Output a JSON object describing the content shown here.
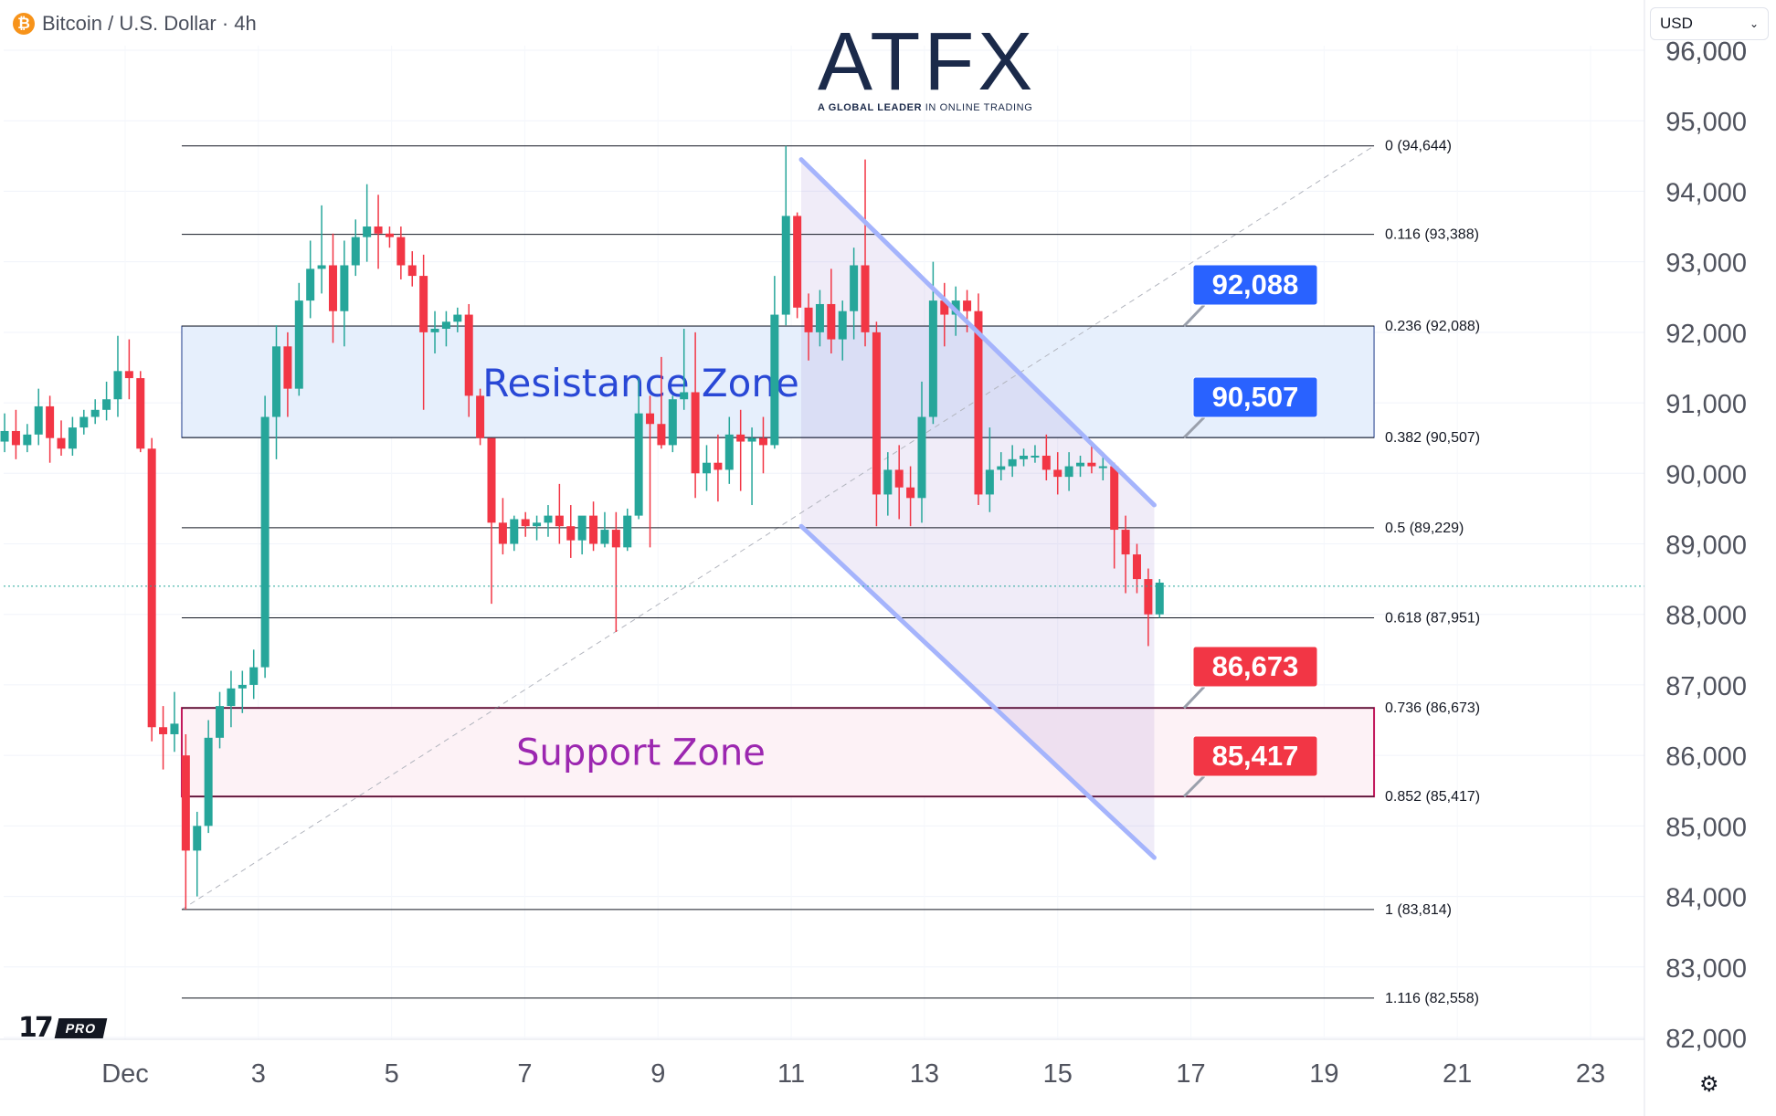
{
  "header": {
    "coin_symbol": "₿",
    "title": "Bitcoin / U.S. Dollar · 4h"
  },
  "currency_select": {
    "value": "USD"
  },
  "logo": {
    "brand": "ATFX",
    "tagline_bold": "A GLOBAL LEADER",
    "tagline_rest": " IN ONLINE TRADING"
  },
  "watermark": {
    "pro_label": "PRO"
  },
  "chart_data": {
    "type": "candlestick",
    "ylim": [
      81700,
      96300
    ],
    "xlim": [
      -1.2,
      23.8
    ],
    "y_ticks": [
      96000,
      95000,
      94000,
      93000,
      92000,
      91000,
      90000,
      89000,
      88000,
      87000,
      86000,
      85000,
      84000,
      83000,
      82000
    ],
    "y_tick_labels": [
      "96,000",
      "95,000",
      "94,000",
      "93,000",
      "92,000",
      "91,000",
      "90,000",
      "89,000",
      "88,000",
      "87,000",
      "86,000",
      "85,000",
      "84,000",
      "83,000",
      "82,000"
    ],
    "x_ticks": [
      1,
      3,
      5,
      7,
      9,
      11,
      13,
      15,
      17,
      19,
      21,
      23
    ],
    "x_tick_labels": [
      "Dec",
      "3",
      "5",
      "7",
      "9",
      "11",
      "13",
      "15",
      "17",
      "19",
      "21",
      "23"
    ],
    "colors": {
      "up": "#26a69a",
      "down": "#f23645",
      "fib_line": "#131722",
      "resistance_fill": "#e6effc",
      "resistance_border": "#1e3a8a",
      "support_fill": "#fdf2f6",
      "support_border": "#c2185b",
      "channel": "#a5b4fc",
      "blue_label": "#2962ff",
      "red_label": "#f23645"
    },
    "fib_levels": [
      {
        "label": "0 (94,644)",
        "value": 94644
      },
      {
        "label": "0.116 (93,388)",
        "value": 93388
      },
      {
        "label": "0.236 (92,088)",
        "value": 92088
      },
      {
        "label": "0.382 (90,507)",
        "value": 90507
      },
      {
        "label": "0.5 (89,229)",
        "value": 89229
      },
      {
        "label": "0.618 (87,951)",
        "value": 87951
      },
      {
        "label": "0.736 (86,673)",
        "value": 86673
      },
      {
        "label": "0.852 (85,417)",
        "value": 85417
      },
      {
        "label": "1 (83,814)",
        "value": 83814
      },
      {
        "label": "1.116 (82,558)",
        "value": 82558
      }
    ],
    "fib_start_x": 1.85,
    "fib_end_x": 19.75,
    "zones": [
      {
        "name": "Resistance Zone",
        "low": 90507,
        "high": 92088,
        "x_start": 1.85,
        "x_end": 19.75
      },
      {
        "name": "Support Zone",
        "low": 85417,
        "high": 86673,
        "x_start": 1.85,
        "x_end": 19.75
      }
    ],
    "price_labels": [
      {
        "text": "92,088",
        "value": 92088,
        "color": "blue"
      },
      {
        "text": "90,507",
        "value": 90507,
        "color": "blue"
      },
      {
        "text": "86,673",
        "value": 86673,
        "color": "red"
      },
      {
        "text": "85,417",
        "value": 85417,
        "color": "red"
      }
    ],
    "channel": {
      "upper": [
        [
          11.15,
          94450
        ],
        [
          16.45,
          89550
        ]
      ],
      "lower": [
        [
          11.15,
          89250
        ],
        [
          16.45,
          84550
        ]
      ]
    },
    "fib_trend_line": [
      [
        1.85,
        83814
      ],
      [
        19.75,
        94644
      ]
    ],
    "current_price": 88400,
    "candles": [
      {
        "x": -1.15,
        "o": 91100,
        "h": 91250,
        "c": 90800,
        "l": 90500
      },
      {
        "x": -0.98,
        "o": 90800,
        "h": 91100,
        "c": 90450,
        "l": 90250
      },
      {
        "x": -0.81,
        "o": 90450,
        "h": 90850,
        "c": 90600,
        "l": 90300
      },
      {
        "x": -0.64,
        "o": 90600,
        "h": 90900,
        "c": 90400,
        "l": 90200
      },
      {
        "x": -0.47,
        "o": 90400,
        "h": 90700,
        "c": 90550,
        "l": 90300
      },
      {
        "x": -0.3,
        "o": 90550,
        "h": 91200,
        "c": 90950,
        "l": 90400
      },
      {
        "x": -0.13,
        "o": 90950,
        "h": 91100,
        "c": 90500,
        "l": 90150
      },
      {
        "x": 0.04,
        "o": 90500,
        "h": 90750,
        "c": 90350,
        "l": 90250
      },
      {
        "x": 0.21,
        "o": 90350,
        "h": 90800,
        "c": 90650,
        "l": 90250
      },
      {
        "x": 0.38,
        "o": 90650,
        "h": 90900,
        "c": 90800,
        "l": 90550
      },
      {
        "x": 0.55,
        "o": 90800,
        "h": 91050,
        "c": 90900,
        "l": 90700
      },
      {
        "x": 0.72,
        "o": 90900,
        "h": 91300,
        "c": 91050,
        "l": 90750
      },
      {
        "x": 0.89,
        "o": 91050,
        "h": 91950,
        "c": 91450,
        "l": 90800
      },
      {
        "x": 1.06,
        "o": 91450,
        "h": 91900,
        "c": 91350,
        "l": 91050
      },
      {
        "x": 1.23,
        "o": 91350,
        "h": 91450,
        "c": 90350,
        "l": 90300
      },
      {
        "x": 1.4,
        "o": 90350,
        "h": 90500,
        "c": 86400,
        "l": 86200
      },
      {
        "x": 1.57,
        "o": 86400,
        "h": 86700,
        "c": 86300,
        "l": 85800
      },
      {
        "x": 1.74,
        "o": 86300,
        "h": 86900,
        "c": 86450,
        "l": 86050
      },
      {
        "x": 1.91,
        "o": 86000,
        "h": 86300,
        "c": 84650,
        "l": 83814
      },
      {
        "x": 2.08,
        "o": 84650,
        "h": 85200,
        "c": 85000,
        "l": 84000
      },
      {
        "x": 2.25,
        "o": 85000,
        "h": 86500,
        "c": 86250,
        "l": 84900
      },
      {
        "x": 2.42,
        "o": 86250,
        "h": 86900,
        "c": 86700,
        "l": 86100
      },
      {
        "x": 2.59,
        "o": 86700,
        "h": 87200,
        "c": 86950,
        "l": 86400
      },
      {
        "x": 2.76,
        "o": 86950,
        "h": 87200,
        "c": 87000,
        "l": 86600
      },
      {
        "x": 2.93,
        "o": 87000,
        "h": 87500,
        "c": 87250,
        "l": 86800
      },
      {
        "x": 3.1,
        "o": 87250,
        "h": 91100,
        "c": 90800,
        "l": 87100
      },
      {
        "x": 3.27,
        "o": 90800,
        "h": 92100,
        "c": 91800,
        "l": 90200
      },
      {
        "x": 3.44,
        "o": 91800,
        "h": 92000,
        "c": 91200,
        "l": 90800
      },
      {
        "x": 3.61,
        "o": 91200,
        "h": 92700,
        "c": 92450,
        "l": 91100
      },
      {
        "x": 3.78,
        "o": 92450,
        "h": 93300,
        "c": 92900,
        "l": 92200
      },
      {
        "x": 3.95,
        "o": 92900,
        "h": 93800,
        "c": 92950,
        "l": 92550
      },
      {
        "x": 4.12,
        "o": 92950,
        "h": 93400,
        "c": 92300,
        "l": 91850
      },
      {
        "x": 4.29,
        "o": 92300,
        "h": 93300,
        "c": 92950,
        "l": 91800
      },
      {
        "x": 4.46,
        "o": 92950,
        "h": 93600,
        "c": 93350,
        "l": 92800
      },
      {
        "x": 4.63,
        "o": 93350,
        "h": 94100,
        "c": 93500,
        "l": 93000
      },
      {
        "x": 4.8,
        "o": 93500,
        "h": 93950,
        "c": 93400,
        "l": 92900
      },
      {
        "x": 4.97,
        "o": 93400,
        "h": 93500,
        "c": 93350,
        "l": 93200
      },
      {
        "x": 5.14,
        "o": 93350,
        "h": 93500,
        "c": 92950,
        "l": 92750
      },
      {
        "x": 5.31,
        "o": 92950,
        "h": 93150,
        "c": 92800,
        "l": 92650
      },
      {
        "x": 5.48,
        "o": 92800,
        "h": 93100,
        "c": 92000,
        "l": 90900
      },
      {
        "x": 5.65,
        "o": 92000,
        "h": 92300,
        "c": 92050,
        "l": 91700
      },
      {
        "x": 5.82,
        "o": 92050,
        "h": 92300,
        "c": 92150,
        "l": 91800
      },
      {
        "x": 5.99,
        "o": 92150,
        "h": 92350,
        "c": 92250,
        "l": 92000
      },
      {
        "x": 6.16,
        "o": 92250,
        "h": 92400,
        "c": 91100,
        "l": 90800
      },
      {
        "x": 6.33,
        "o": 91100,
        "h": 91200,
        "c": 90500,
        "l": 90400
      },
      {
        "x": 6.5,
        "o": 90500,
        "h": 90500,
        "c": 89300,
        "l": 88150
      },
      {
        "x": 6.67,
        "o": 89300,
        "h": 89650,
        "c": 89000,
        "l": 88850
      },
      {
        "x": 6.84,
        "o": 89000,
        "h": 89400,
        "c": 89350,
        "l": 88900
      },
      {
        "x": 7.01,
        "o": 89350,
        "h": 89450,
        "c": 89250,
        "l": 89100
      },
      {
        "x": 7.18,
        "o": 89250,
        "h": 89400,
        "c": 89300,
        "l": 89050
      },
      {
        "x": 7.35,
        "o": 89300,
        "h": 89550,
        "c": 89400,
        "l": 89100
      },
      {
        "x": 7.52,
        "o": 89400,
        "h": 89850,
        "c": 89250,
        "l": 89000
      },
      {
        "x": 7.69,
        "o": 89250,
        "h": 89550,
        "c": 89050,
        "l": 88800
      },
      {
        "x": 7.86,
        "o": 89050,
        "h": 89300,
        "c": 89400,
        "l": 88850
      },
      {
        "x": 8.03,
        "o": 89400,
        "h": 89600,
        "c": 89000,
        "l": 88900
      },
      {
        "x": 8.2,
        "o": 89000,
        "h": 89450,
        "c": 89200,
        "l": 88950
      },
      {
        "x": 8.37,
        "o": 89200,
        "h": 89450,
        "c": 88950,
        "l": 87750
      },
      {
        "x": 8.54,
        "o": 88950,
        "h": 89500,
        "c": 89400,
        "l": 88900
      },
      {
        "x": 8.71,
        "o": 89400,
        "h": 91350,
        "c": 90850,
        "l": 89350
      },
      {
        "x": 8.88,
        "o": 90850,
        "h": 91100,
        "c": 90700,
        "l": 88950
      },
      {
        "x": 9.05,
        "o": 90700,
        "h": 91650,
        "c": 90400,
        "l": 90350
      },
      {
        "x": 9.22,
        "o": 90400,
        "h": 91100,
        "c": 91050,
        "l": 90300
      },
      {
        "x": 9.39,
        "o": 91050,
        "h": 92050,
        "c": 91150,
        "l": 90900
      },
      {
        "x": 9.56,
        "o": 91150,
        "h": 92000,
        "c": 90000,
        "l": 89650
      },
      {
        "x": 9.73,
        "o": 90000,
        "h": 90400,
        "c": 90150,
        "l": 89750
      },
      {
        "x": 9.9,
        "o": 90150,
        "h": 90550,
        "c": 90050,
        "l": 89600
      },
      {
        "x": 10.07,
        "o": 90050,
        "h": 90800,
        "c": 90550,
        "l": 89850
      },
      {
        "x": 10.24,
        "o": 90550,
        "h": 90900,
        "c": 90450,
        "l": 89750
      },
      {
        "x": 10.41,
        "o": 90450,
        "h": 90650,
        "c": 90500,
        "l": 89550
      },
      {
        "x": 10.58,
        "o": 90500,
        "h": 90800,
        "c": 90400,
        "l": 90000
      },
      {
        "x": 10.75,
        "o": 90400,
        "h": 92800,
        "c": 92250,
        "l": 90350
      },
      {
        "x": 10.92,
        "o": 92250,
        "h": 94644,
        "c": 93650,
        "l": 92100
      },
      {
        "x": 11.09,
        "o": 93650,
        "h": 93700,
        "c": 92350,
        "l": 92200
      },
      {
        "x": 11.26,
        "o": 92350,
        "h": 92550,
        "c": 92000,
        "l": 91600
      },
      {
        "x": 11.43,
        "o": 92000,
        "h": 92600,
        "c": 92400,
        "l": 91800
      },
      {
        "x": 11.6,
        "o": 92400,
        "h": 92900,
        "c": 91900,
        "l": 91700
      },
      {
        "x": 11.77,
        "o": 91900,
        "h": 92450,
        "c": 92300,
        "l": 91600
      },
      {
        "x": 11.94,
        "o": 92300,
        "h": 93200,
        "c": 92950,
        "l": 91900
      },
      {
        "x": 12.11,
        "o": 92950,
        "h": 94450,
        "c": 92000,
        "l": 91800
      },
      {
        "x": 12.28,
        "o": 92000,
        "h": 92150,
        "c": 89700,
        "l": 89250
      },
      {
        "x": 12.45,
        "o": 89700,
        "h": 90300,
        "c": 90050,
        "l": 89400
      },
      {
        "x": 12.62,
        "o": 90050,
        "h": 90400,
        "c": 89800,
        "l": 89350
      },
      {
        "x": 12.79,
        "o": 89800,
        "h": 90100,
        "c": 89650,
        "l": 89250
      },
      {
        "x": 12.96,
        "o": 89650,
        "h": 91300,
        "c": 90800,
        "l": 89300
      },
      {
        "x": 13.13,
        "o": 90800,
        "h": 93000,
        "c": 92450,
        "l": 90700
      },
      {
        "x": 13.3,
        "o": 92450,
        "h": 92700,
        "c": 92250,
        "l": 91800
      },
      {
        "x": 13.47,
        "o": 92250,
        "h": 92650,
        "c": 92450,
        "l": 91950
      },
      {
        "x": 13.64,
        "o": 92450,
        "h": 92600,
        "c": 92300,
        "l": 92000
      },
      {
        "x": 13.81,
        "o": 92300,
        "h": 92550,
        "c": 89700,
        "l": 89550
      },
      {
        "x": 13.98,
        "o": 89700,
        "h": 90650,
        "c": 90050,
        "l": 89450
      },
      {
        "x": 14.15,
        "o": 90050,
        "h": 90300,
        "c": 90100,
        "l": 89900
      },
      {
        "x": 14.32,
        "o": 90100,
        "h": 90400,
        "c": 90200,
        "l": 89950
      },
      {
        "x": 14.49,
        "o": 90200,
        "h": 90350,
        "c": 90250,
        "l": 90100
      },
      {
        "x": 14.66,
        "o": 90250,
        "h": 90400,
        "c": 90250,
        "l": 90150
      },
      {
        "x": 14.83,
        "o": 90250,
        "h": 90550,
        "c": 90050,
        "l": 89900
      },
      {
        "x": 15.0,
        "o": 90050,
        "h": 90300,
        "c": 89950,
        "l": 89700
      },
      {
        "x": 15.17,
        "o": 89950,
        "h": 90300,
        "c": 90100,
        "l": 89750
      },
      {
        "x": 15.34,
        "o": 90100,
        "h": 90250,
        "c": 90150,
        "l": 89950
      },
      {
        "x": 15.51,
        "o": 90150,
        "h": 90400,
        "c": 90100,
        "l": 90000
      },
      {
        "x": 15.68,
        "o": 90100,
        "h": 90300,
        "c": 90100,
        "l": 89900
      },
      {
        "x": 15.85,
        "o": 90100,
        "h": 90150,
        "c": 89200,
        "l": 88650
      },
      {
        "x": 16.02,
        "o": 89200,
        "h": 89400,
        "c": 88850,
        "l": 88300
      },
      {
        "x": 16.19,
        "o": 88850,
        "h": 89000,
        "c": 88500,
        "l": 88300
      },
      {
        "x": 16.36,
        "o": 88500,
        "h": 88650,
        "c": 88000,
        "l": 87550
      },
      {
        "x": 16.53,
        "o": 88000,
        "h": 88500,
        "c": 88450,
        "l": 87950
      }
    ]
  }
}
